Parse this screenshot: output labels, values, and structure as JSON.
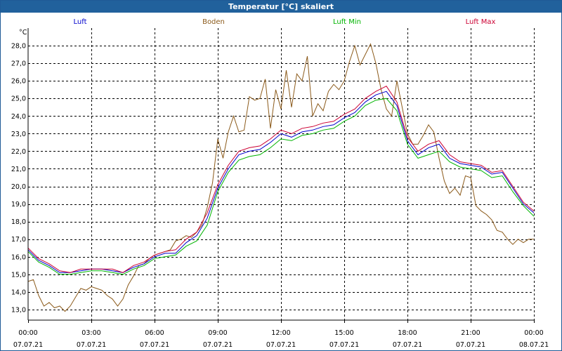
{
  "window": {
    "title": "Temperatur [°C] skaliert"
  },
  "chart_data": {
    "type": "line",
    "title": "Temperatur [°C] skaliert",
    "ylabel": "°C",
    "xlabel": "",
    "ylim": [
      12.4,
      29.0
    ],
    "xlim": [
      0,
      24
    ],
    "y_ticks": [
      13,
      14,
      15,
      16,
      17,
      18,
      19,
      20,
      21,
      22,
      23,
      24,
      25,
      26,
      27,
      28
    ],
    "y_tick_labels": [
      "13,0",
      "14,0",
      "15,0",
      "16,0",
      "17,0",
      "18,0",
      "19,0",
      "20,0",
      "21,0",
      "22,0",
      "23,0",
      "24,0",
      "25,0",
      "26,0",
      "27,0",
      "28,0"
    ],
    "x_ticks": [
      0,
      3,
      6,
      9,
      12,
      15,
      18,
      21,
      24
    ],
    "x_tick_times": [
      "00:00",
      "03:00",
      "06:00",
      "09:00",
      "12:00",
      "15:00",
      "18:00",
      "21:00",
      "00:00"
    ],
    "x_tick_dates": [
      "07.07.21",
      "07.07.21",
      "07.07.21",
      "07.07.21",
      "07.07.21",
      "07.07.21",
      "07.07.21",
      "07.07.21",
      "08.07.21"
    ],
    "grid": true,
    "legend_position": "top",
    "series": [
      {
        "name": "Luft",
        "color": "#0000cc",
        "x": [
          0,
          0.5,
          1,
          1.5,
          2,
          2.5,
          3,
          3.5,
          4,
          4.5,
          5,
          5.5,
          6,
          6.5,
          7,
          7.5,
          8,
          8.5,
          9,
          9.5,
          10,
          10.5,
          11,
          11.5,
          12,
          12.5,
          13,
          13.5,
          14,
          14.5,
          15,
          15.5,
          16,
          16.5,
          17,
          17.5,
          18,
          18.5,
          19,
          19.5,
          20,
          20.5,
          21,
          21.5,
          22,
          22.5,
          23,
          23.5,
          24
        ],
        "values": [
          16.4,
          15.8,
          15.5,
          15.1,
          15.1,
          15.2,
          15.3,
          15.3,
          15.2,
          15.1,
          15.4,
          15.6,
          16.0,
          16.2,
          16.2,
          16.8,
          17.2,
          18.2,
          19.9,
          21.0,
          21.8,
          22.0,
          22.1,
          22.5,
          23.0,
          22.8,
          23.1,
          23.2,
          23.4,
          23.5,
          23.9,
          24.2,
          24.8,
          25.2,
          25.4,
          24.6,
          22.6,
          21.8,
          22.2,
          22.4,
          21.6,
          21.3,
          21.2,
          21.1,
          20.7,
          20.8,
          19.9,
          19.0,
          18.5
        ]
      },
      {
        "name": "Boden",
        "color": "#8b5a1a",
        "x": [
          0,
          0.25,
          0.5,
          0.75,
          1,
          1.25,
          1.5,
          1.75,
          2,
          2.25,
          2.5,
          2.75,
          3,
          3.25,
          3.5,
          3.75,
          4,
          4.25,
          4.5,
          4.75,
          5,
          5.25,
          5.5,
          5.75,
          6,
          6.25,
          6.5,
          6.75,
          7,
          7.25,
          7.5,
          7.75,
          8,
          8.25,
          8.5,
          8.75,
          9,
          9.25,
          9.5,
          9.75,
          10,
          10.25,
          10.5,
          10.75,
          11,
          11.25,
          11.5,
          11.75,
          12,
          12.25,
          12.5,
          12.75,
          13,
          13.25,
          13.5,
          13.75,
          14,
          14.25,
          14.5,
          14.75,
          15,
          15.25,
          15.5,
          15.75,
          16,
          16.25,
          16.5,
          16.75,
          17,
          17.25,
          17.5,
          17.75,
          18,
          18.25,
          18.5,
          18.75,
          19,
          19.25,
          19.5,
          19.75,
          20,
          20.25,
          20.5,
          20.75,
          21,
          21.25,
          21.5,
          21.75,
          22,
          22.25,
          22.5,
          22.75,
          23,
          23.25,
          23.5,
          23.75,
          24
        ],
        "values": [
          14.6,
          14.7,
          13.8,
          13.2,
          13.4,
          13.1,
          13.2,
          12.9,
          13.2,
          13.7,
          14.2,
          14.1,
          14.3,
          14.2,
          14.1,
          13.8,
          13.6,
          13.2,
          13.6,
          14.4,
          14.9,
          15.5,
          15.6,
          15.9,
          16.1,
          16.2,
          16.3,
          16.4,
          16.9,
          17.0,
          17.2,
          17.1,
          17.4,
          17.8,
          18.8,
          20.2,
          22.7,
          21.6,
          23.1,
          24.0,
          23.1,
          23.2,
          25.1,
          24.9,
          25.0,
          26.1,
          23.3,
          25.5,
          24.4,
          26.6,
          24.5,
          26.4,
          26.0,
          27.4,
          24.0,
          24.7,
          24.3,
          25.4,
          25.8,
          25.5,
          26.0,
          27.1,
          28.0,
          26.9,
          27.5,
          28.1,
          27.0,
          25.5,
          24.4,
          24.0,
          26.0,
          24.5,
          23.0,
          22.4,
          22.4,
          22.9,
          23.5,
          23.1,
          21.6,
          20.3,
          19.6,
          19.9,
          19.5,
          20.6,
          20.5,
          18.9,
          18.6,
          18.4,
          18.1,
          17.5,
          17.4,
          17.0,
          16.7,
          17.0,
          16.8,
          17.0,
          17.0
        ]
      },
      {
        "name": "Luft Min",
        "color": "#00b400",
        "x": [
          0,
          0.5,
          1,
          1.5,
          2,
          2.5,
          3,
          3.5,
          4,
          4.5,
          5,
          5.5,
          6,
          6.5,
          7,
          7.5,
          8,
          8.5,
          9,
          9.5,
          10,
          10.5,
          11,
          11.5,
          12,
          12.5,
          13,
          13.5,
          14,
          14.5,
          15,
          15.5,
          16,
          16.5,
          17,
          17.5,
          18,
          18.5,
          19,
          19.5,
          20,
          20.5,
          21,
          21.5,
          22,
          22.5,
          23,
          23.5,
          24
        ],
        "values": [
          16.3,
          15.7,
          15.4,
          15.0,
          15.0,
          15.1,
          15.2,
          15.2,
          15.1,
          15.0,
          15.3,
          15.5,
          15.9,
          16.0,
          16.1,
          16.6,
          16.9,
          17.8,
          19.7,
          20.8,
          21.5,
          21.7,
          21.8,
          22.2,
          22.7,
          22.6,
          22.9,
          23.0,
          23.2,
          23.3,
          23.7,
          24.0,
          24.6,
          24.9,
          25.0,
          24.3,
          22.4,
          21.6,
          21.8,
          22.0,
          21.4,
          21.1,
          21.0,
          20.9,
          20.5,
          20.6,
          19.7,
          18.9,
          18.3
        ]
      },
      {
        "name": "Luft Max",
        "color": "#cc0033",
        "x": [
          0,
          0.5,
          1,
          1.5,
          2,
          2.5,
          3,
          3.5,
          4,
          4.5,
          5,
          5.5,
          6,
          6.5,
          7,
          7.5,
          8,
          8.5,
          9,
          9.5,
          10,
          10.5,
          11,
          11.5,
          12,
          12.5,
          13,
          13.5,
          14,
          14.5,
          15,
          15.5,
          16,
          16.5,
          17,
          17.5,
          18,
          18.5,
          19,
          19.5,
          20,
          20.5,
          21,
          21.5,
          22,
          22.5,
          23,
          23.5,
          24
        ],
        "values": [
          16.5,
          15.9,
          15.6,
          15.2,
          15.1,
          15.3,
          15.3,
          15.3,
          15.3,
          15.1,
          15.5,
          15.7,
          16.1,
          16.3,
          16.4,
          17.0,
          17.4,
          18.5,
          20.1,
          21.2,
          22.0,
          22.2,
          22.3,
          22.7,
          23.2,
          23.0,
          23.3,
          23.4,
          23.6,
          23.7,
          24.1,
          24.4,
          25.0,
          25.4,
          25.7,
          24.8,
          22.8,
          22.0,
          22.4,
          22.6,
          21.8,
          21.4,
          21.3,
          21.2,
          20.8,
          20.9,
          20.0,
          19.1,
          18.6
        ]
      }
    ]
  }
}
